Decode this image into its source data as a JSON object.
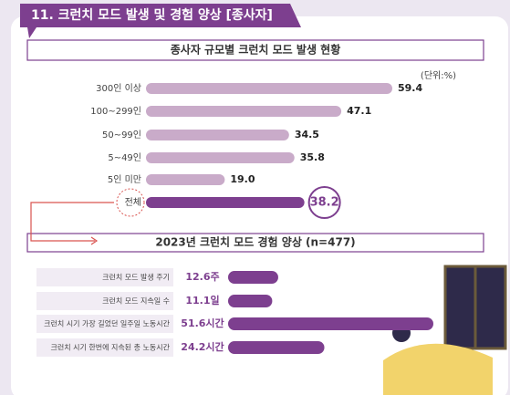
{
  "title": "11. 크런치 모드 발생 및 경험 양상 [종사자]",
  "chart_data": [
    {
      "type": "bar",
      "title": "종사자 규모별 크런치 모드 발생 현황",
      "unit": "(단위:%)",
      "categories": [
        "300인 이상",
        "100~299인",
        "50~99인",
        "5~49인",
        "5인 미만",
        "전체"
      ],
      "values": [
        59.4,
        47.1,
        34.5,
        35.8,
        19.0,
        38.2
      ],
      "value_labels": [
        "59.4",
        "47.1",
        "34.5",
        "35.8",
        "19.0",
        "38.2"
      ],
      "colors": [
        "#c9abc9",
        "#c9abc9",
        "#c9abc9",
        "#c9abc9",
        "#c9abc9",
        "#7d3f8f"
      ]
    },
    {
      "type": "bar",
      "title": "2023년 크런치 모드 경험 양상 (n=477)",
      "categories": [
        "크런치 모드 발생 주기",
        "크런치 모드 지속일 수",
        "크런치 시기 가장 길었던 일주일 노동시간",
        "크런치 시기 한번에 지속된 총 노동시간"
      ],
      "values": [
        12.6,
        11.1,
        51.6,
        24.2
      ],
      "value_labels": [
        "12.6주",
        "11.1일",
        "51.6시간",
        "24.2시간"
      ],
      "color": "#7d3f8f"
    }
  ]
}
